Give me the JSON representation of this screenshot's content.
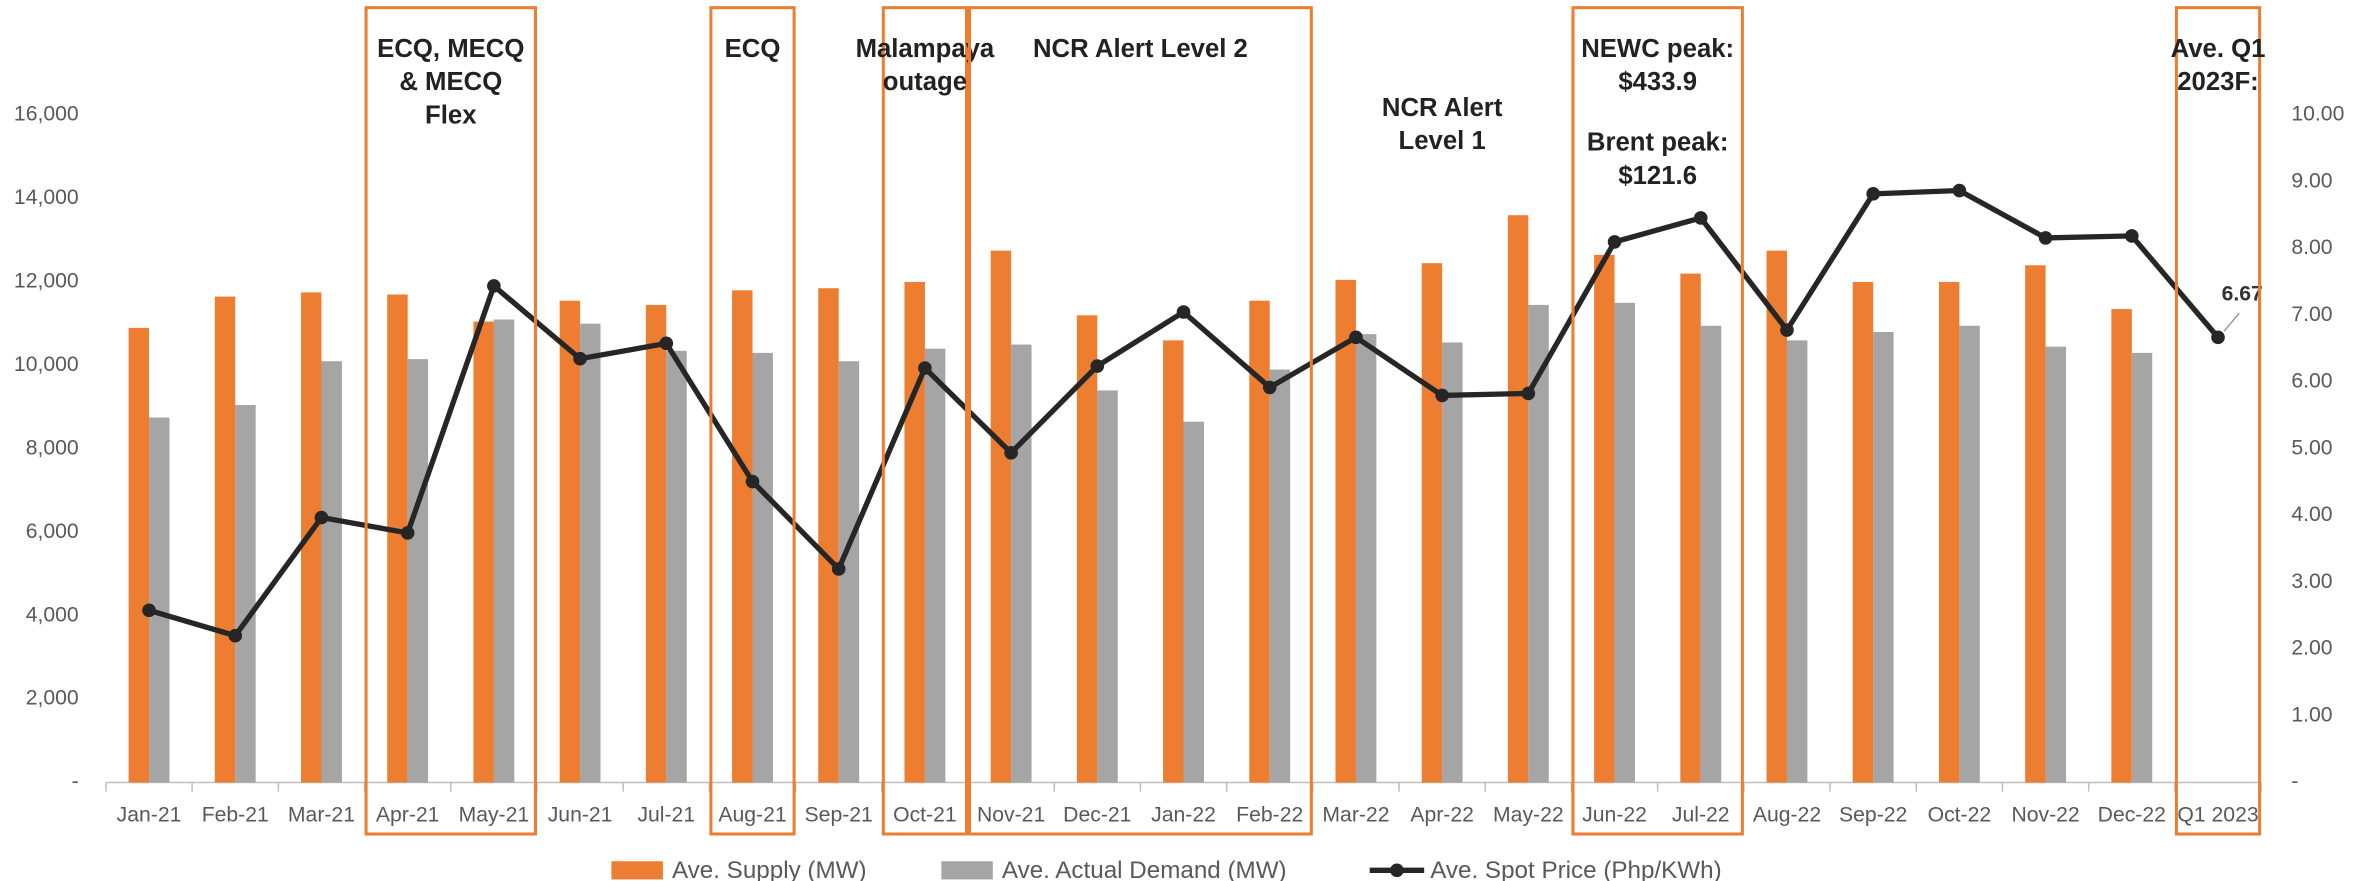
{
  "chart_data": {
    "type": "bar-line",
    "categories": [
      "Jan-21",
      "Feb-21",
      "Mar-21",
      "Apr-21",
      "May-21",
      "Jun-21",
      "Jul-21",
      "Aug-21",
      "Sep-21",
      "Oct-21",
      "Nov-21",
      "Dec-21",
      "Jan-22",
      "Feb-22",
      "Mar-22",
      "Apr-22",
      "May-22",
      "Jun-22",
      "Jul-22",
      "Aug-22",
      "Sep-22",
      "Oct-22",
      "Nov-22",
      "Dec-22",
      "Q1 2023"
    ],
    "series": [
      {
        "name": "Ave. Supply (MW)",
        "type": "bar",
        "color": "#ed7d31",
        "values": [
          10900,
          11650,
          11750,
          11700,
          11050,
          11550,
          11450,
          11800,
          11850,
          12000,
          12750,
          11200,
          10600,
          11550,
          12050,
          12450,
          13600,
          12650,
          12200,
          12750,
          12000,
          12000,
          12400,
          11350,
          null
        ]
      },
      {
        "name": "Ave. Actual Demand (MW)",
        "type": "bar",
        "color": "#a5a5a5",
        "values": [
          8750,
          9050,
          10100,
          10150,
          11100,
          11000,
          10350,
          10300,
          10100,
          10400,
          10500,
          9400,
          8650,
          9900,
          10750,
          10550,
          11450,
          11500,
          10950,
          10600,
          10800,
          10950,
          10450,
          10300,
          null
        ]
      },
      {
        "name": "Ave. Spot Price (Php/KWh)",
        "type": "line",
        "axis": "y2",
        "color": "#262626",
        "values": [
          2.58,
          2.2,
          3.97,
          3.74,
          7.44,
          6.35,
          6.58,
          4.51,
          3.2,
          6.21,
          4.94,
          6.24,
          7.05,
          5.92,
          6.67,
          5.8,
          5.83,
          8.1,
          8.46,
          6.78,
          8.82,
          8.87,
          8.16,
          8.19,
          6.67
        ],
        "value_labels": [
          null,
          null,
          null,
          null,
          null,
          null,
          null,
          null,
          null,
          null,
          null,
          null,
          null,
          null,
          null,
          null,
          null,
          null,
          null,
          null,
          null,
          null,
          null,
          null,
          "6.67"
        ]
      }
    ],
    "ylim": [
      0,
      16000
    ],
    "yticks": [
      {
        "value": 0,
        "label": "-"
      },
      {
        "value": 2000,
        "label": "2,000"
      },
      {
        "value": 4000,
        "label": "4,000"
      },
      {
        "value": 6000,
        "label": "6,000"
      },
      {
        "value": 8000,
        "label": "8,000"
      },
      {
        "value": 10000,
        "label": "10,000"
      },
      {
        "value": 12000,
        "label": "12,000"
      },
      {
        "value": 14000,
        "label": "14,000"
      },
      {
        "value": 16000,
        "label": "16,000"
      }
    ],
    "y2lim": [
      0,
      10
    ],
    "y2ticks": [
      {
        "value": 0,
        "label": "-"
      },
      {
        "value": 1,
        "label": "1.00"
      },
      {
        "value": 2,
        "label": "2.00"
      },
      {
        "value": 3,
        "label": "3.00"
      },
      {
        "value": 4,
        "label": "4.00"
      },
      {
        "value": 5,
        "label": "5.00"
      },
      {
        "value": 6,
        "label": "6.00"
      },
      {
        "value": 7,
        "label": "7.00"
      },
      {
        "value": 8,
        "label": "8.00"
      },
      {
        "value": 9,
        "label": "9.00"
      },
      {
        "value": 10,
        "label": "10.00"
      }
    ],
    "grid": false,
    "legend": "bottom",
    "annotations": [
      {
        "from": "Apr-21",
        "to": "May-21",
        "boxed": true,
        "color": "#ed7d31",
        "blocks": [
          [
            "ECQ, MECQ",
            "& MECQ",
            "Flex"
          ]
        ]
      },
      {
        "from": "Aug-21",
        "to": "Aug-21",
        "boxed": true,
        "color": "#ed7d31",
        "blocks": [
          [
            "ECQ"
          ]
        ]
      },
      {
        "from": "Oct-21",
        "to": "Oct-21",
        "boxed": true,
        "color": "#ed7d31",
        "blocks": [
          [
            "Malampaya",
            "outage"
          ]
        ]
      },
      {
        "from": "Nov-21",
        "to": "Feb-22",
        "boxed": true,
        "color": "#ed7d31",
        "blocks": [
          [
            "NCR Alert Level 2"
          ]
        ]
      },
      {
        "from": "Mar-22",
        "to": "May-22",
        "boxed": false,
        "blocks": [
          [
            "NCR Alert",
            "Level 1"
          ]
        ]
      },
      {
        "from": "Jun-22",
        "to": "Jul-22",
        "boxed": true,
        "color": "#ed7d31",
        "blocks": [
          [
            "NEWC peak:",
            "$433.9"
          ],
          [
            "Brent peak:",
            "$121.6"
          ]
        ]
      },
      {
        "from": "Q1 2023",
        "to": "Q1 2023",
        "boxed": true,
        "color": "#ed7d31",
        "blocks": [
          [
            "Ave. Q1",
            "2023F:"
          ]
        ]
      }
    ]
  }
}
